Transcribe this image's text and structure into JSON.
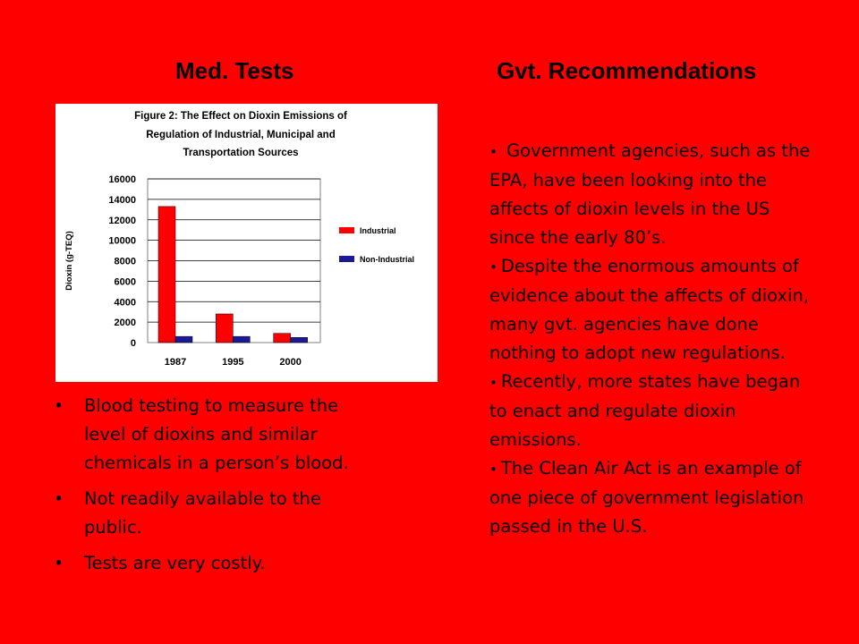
{
  "headings": {
    "left": "Med. Tests",
    "right": "Gvt. Recommendations"
  },
  "colors": {
    "background": "#ff0000",
    "industrial": "#ff0000",
    "non_industrial": "#1a1a99"
  },
  "chart_data": {
    "type": "bar",
    "title": "Figure 2: The Effect on Dioxin Emissions of Regulation of Industrial, Municipal and Transportation Sources",
    "title_lines": [
      "Figure 2: The Effect on Dioxin Emissions of",
      "Regulation of Industrial, Municipal and",
      "Transportation Sources"
    ],
    "xlabel": "",
    "ylabel": "Dioxin (g-TEQ)",
    "categories": [
      "1987",
      "1995",
      "2000"
    ],
    "series": [
      {
        "name": "Industrial",
        "values": [
          13300,
          2800,
          900
        ]
      },
      {
        "name": "Non-Industrial",
        "values": [
          600,
          600,
          500
        ]
      }
    ],
    "ylim": [
      0,
      16000
    ],
    "yticks": [
      "0",
      "2000",
      "4000",
      "6000",
      "8000",
      "10000",
      "12000",
      "14000",
      "16000"
    ],
    "grid": true,
    "legend": "right"
  },
  "left_bullets": [
    "Blood testing to measure the level of dioxins and similar chemicals in a person’s blood.",
    "Not readily available to the public.",
    "Tests are very costly."
  ],
  "right_bullets": [
    " Government agencies, such as the EPA, have been looking into the affects of dioxin levels in the US since the early 80’s.",
    "Despite the enormous amounts of evidence about the affects of dioxin, many gvt. agencies have done nothing to adopt new regulations.",
    "Recently, more states have began to enact and regulate dioxin emissions.",
    "The Clean Air Act is an example of one piece of government legislation passed in the U.S."
  ],
  "bullet_glyph": "•"
}
